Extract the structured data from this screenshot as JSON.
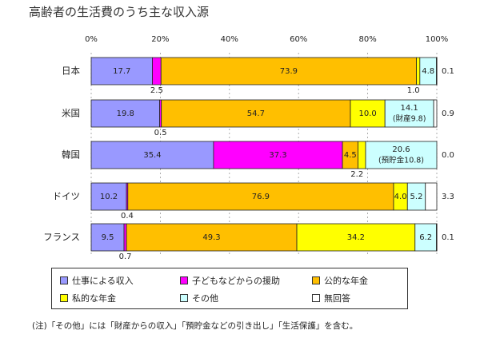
{
  "title": "高齢者の生活費のうち主な収入源",
  "note": "(注)「その他」には「財産からの収入」「預貯金などの引き出し」「生活保護」を含む。",
  "colors": {
    "work": "#9999ff",
    "children": "#ff00ff",
    "public_pension": "#ffbf00",
    "private_pension": "#ffff00",
    "other": "#ccffff",
    "no_answer": "#ffffff"
  },
  "chart_data": {
    "type": "bar",
    "orientation": "horizontal-stacked-100",
    "title": "高齢者の生活費のうち主な収入源",
    "xlim": [
      0,
      100
    ],
    "x_ticks": [
      "0%",
      "20%",
      "40%",
      "60%",
      "80%",
      "100%"
    ],
    "categories": [
      "日本",
      "米国",
      "韓国",
      "ドイツ",
      "フランス"
    ],
    "series": [
      {
        "key": "work",
        "name": "仕事による収入",
        "values": [
          17.7,
          19.8,
          35.4,
          10.2,
          9.5
        ]
      },
      {
        "key": "children",
        "name": "子どもなどからの援助",
        "values": [
          2.5,
          0.5,
          37.3,
          0.4,
          0.7
        ]
      },
      {
        "key": "public_pension",
        "name": "公的な年金",
        "values": [
          73.9,
          54.7,
          4.5,
          76.9,
          49.3
        ]
      },
      {
        "key": "private_pension",
        "name": "私的な年金",
        "values": [
          1.0,
          10.0,
          2.2,
          4.0,
          34.2
        ]
      },
      {
        "key": "other",
        "name": "その他",
        "values": [
          4.8,
          14.1,
          20.6,
          5.2,
          6.2
        ]
      },
      {
        "key": "no_answer",
        "name": "無回答",
        "values": [
          0.1,
          0.9,
          0.0,
          3.3,
          0.1
        ]
      }
    ],
    "other_labels": [
      "4.8",
      "14.1\n(財産9.8)",
      "20.6\n(預貯金10.8)",
      "5.2",
      "6.2"
    ],
    "labels": [
      [
        "17.7",
        "2.5",
        "73.9",
        "1.0",
        "4.8",
        "0.1"
      ],
      [
        "19.8",
        "0.5",
        "54.7",
        "10.0",
        "14.1\n(財産9.8)",
        "0.9"
      ],
      [
        "35.4",
        "37.3",
        "4.5",
        "2.2",
        "20.6\n(預貯金10.8)",
        "0.0"
      ],
      [
        "10.2",
        "0.4",
        "76.9",
        "4.0",
        "5.2",
        "3.3"
      ],
      [
        "9.5",
        "0.7",
        "49.3",
        "34.2",
        "6.2",
        "0.1"
      ]
    ],
    "legend": {
      "position": "bottom",
      "entries": [
        "仕事による収入",
        "子どもなどからの援助",
        "公的な年金",
        "私的な年金",
        "その他",
        "無回答"
      ]
    }
  }
}
